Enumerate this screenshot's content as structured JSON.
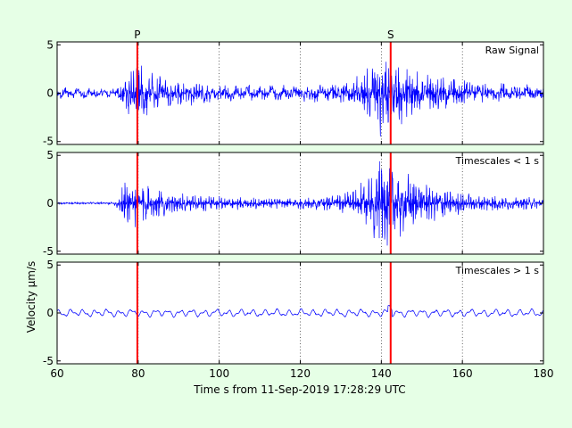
{
  "chart_data": {
    "type": "line",
    "xlabel": "Time s from 11-Sep-2019 17:28:29 UTC",
    "ylabel": "Velocity μm/s",
    "xlim": [
      60,
      180
    ],
    "x_ticks": [
      "60",
      "80",
      "100",
      "120",
      "140",
      "160",
      "180"
    ],
    "x_tick_values": [
      60,
      80,
      100,
      120,
      140,
      160,
      180
    ],
    "grid": "vertical dotted",
    "picks": [
      {
        "label": "P",
        "time": 79.8,
        "color": "#ff0000"
      },
      {
        "label": "S",
        "time": 142.3,
        "color": "#ff0000"
      }
    ],
    "panels": [
      {
        "name": "raw",
        "label": "Raw Signal",
        "ylim": [
          -5.3,
          5.3
        ],
        "y_ticks": [
          "5",
          "0",
          "-5"
        ],
        "y_tick_values": [
          5,
          0,
          -5
        ],
        "envelope": [
          [
            60,
            0.45
          ],
          [
            74,
            0.5
          ],
          [
            76,
            1.4
          ],
          [
            77.5,
            3.2
          ],
          [
            80,
            3.0
          ],
          [
            84,
            2.0
          ],
          [
            90,
            1.3
          ],
          [
            100,
            0.9
          ],
          [
            110,
            0.7
          ],
          [
            125,
            0.8
          ],
          [
            133,
            1.3
          ],
          [
            137,
            3.0
          ],
          [
            140,
            5.0
          ],
          [
            142,
            4.2
          ],
          [
            146,
            3.2
          ],
          [
            152,
            2.0
          ],
          [
            160,
            1.4
          ],
          [
            170,
            0.9
          ],
          [
            180,
            0.8
          ]
        ],
        "low_amp": 0.35,
        "color": "#0000ff"
      },
      {
        "name": "high",
        "label": "Timescales < 1 s",
        "ylim": [
          -5.3,
          5.3
        ],
        "y_ticks": [
          "5",
          "0",
          "-5"
        ],
        "y_tick_values": [
          5,
          0,
          -5
        ],
        "envelope": [
          [
            60,
            0.12
          ],
          [
            74,
            0.15
          ],
          [
            75.5,
            1.2
          ],
          [
            77,
            2.8
          ],
          [
            80,
            2.6
          ],
          [
            84,
            1.7
          ],
          [
            90,
            1.1
          ],
          [
            100,
            0.8
          ],
          [
            110,
            0.6
          ],
          [
            125,
            0.7
          ],
          [
            133,
            1.4
          ],
          [
            137,
            3.0
          ],
          [
            140,
            5.0
          ],
          [
            142,
            4.5
          ],
          [
            146,
            3.6
          ],
          [
            152,
            2.1
          ],
          [
            160,
            1.2
          ],
          [
            170,
            0.8
          ],
          [
            180,
            0.6
          ]
        ],
        "low_amp": 0.0,
        "color": "#0000ff"
      },
      {
        "name": "low",
        "label": "Timescales > 1 s",
        "ylim": [
          -5.3,
          5.3
        ],
        "y_ticks": [
          "5",
          "0",
          "-5"
        ],
        "y_tick_values": [
          5,
          0,
          -5
        ],
        "envelope": [
          [
            60,
            0.05
          ],
          [
            180,
            0.05
          ]
        ],
        "low_amp": 0.45,
        "color": "#0000ff"
      }
    ]
  }
}
